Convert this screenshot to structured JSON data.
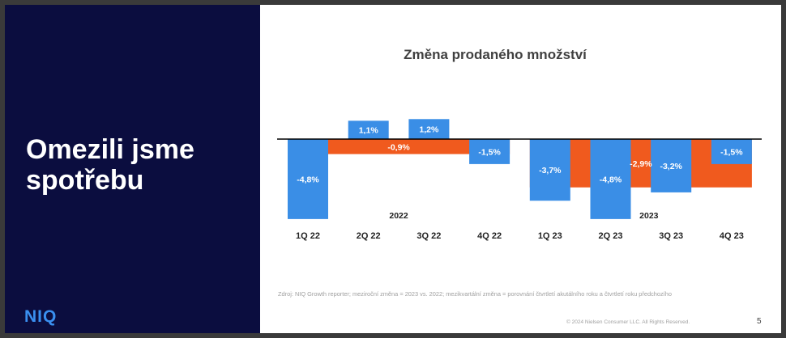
{
  "slide": {
    "title_lines": [
      "Omezili jsme",
      "spotřebu"
    ],
    "logo": "NIQ",
    "source": "Zdroj: NIQ Growth reporter; meziroční změna = 2023 vs. 2022; mezikvartální změna = porovnání čtvrtletí akutálního roku a čtvrtletí roku předchozího",
    "copyright": "© 2024 Nielsen Consumer LLC. All Rights Reserved.",
    "page_number": "5"
  },
  "colors": {
    "panel": "#0b0d3f",
    "quarterly": "#3a8ee6",
    "yearly": "#f05a1e",
    "axis": "#000000"
  },
  "chart_data": {
    "type": "bar",
    "title": "Změna prodaného množství",
    "categories": [
      "1Q 22",
      "2Q 22",
      "3Q 22",
      "4Q 22",
      "1Q 23",
      "2Q 23",
      "3Q 23",
      "4Q 23"
    ],
    "quarterly": {
      "values": [
        -4.8,
        1.1,
        1.2,
        -1.5,
        -3.7,
        -4.8,
        -3.2,
        -1.5
      ],
      "labels": [
        "-4,8%",
        "1,1%",
        "1,2%",
        "-1,5%",
        "-3,7%",
        "-4,8%",
        "-3,2%",
        "-1,5%"
      ]
    },
    "yearly": [
      {
        "year_label": "2022",
        "value": -0.9,
        "label": "-0,9%",
        "from_index": 0,
        "to_index": 3
      },
      {
        "year_label": "2023",
        "value": -2.9,
        "label": "-2,9%",
        "from_index": 4,
        "to_index": 7
      }
    ],
    "ylim": [
      -5,
      1.5
    ]
  }
}
